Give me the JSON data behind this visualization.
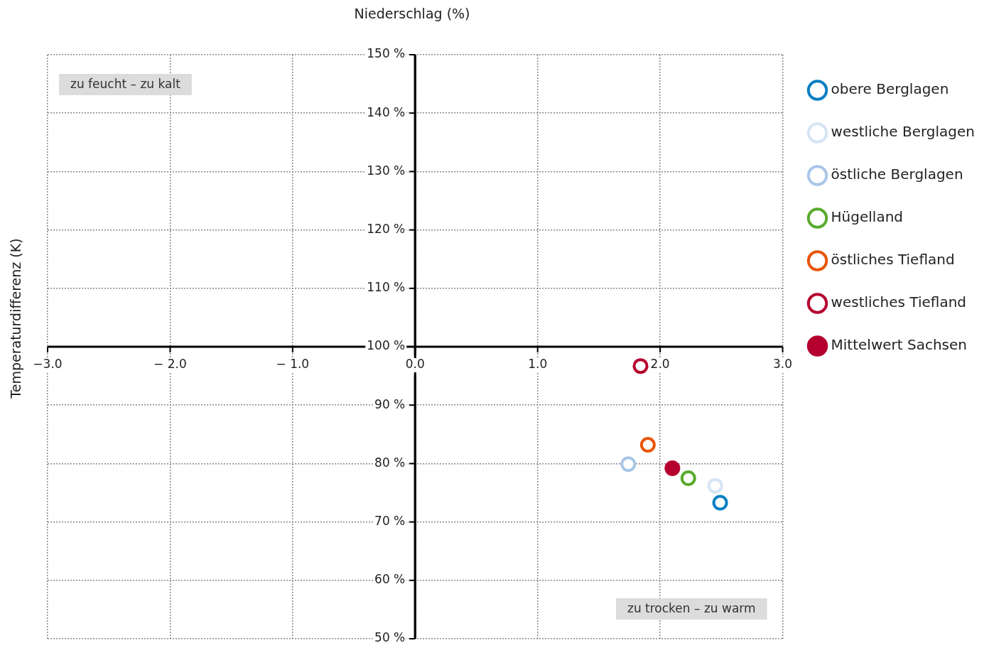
{
  "chart_data": {
    "type": "scatter",
    "ylabel": "Temperaturdifferenz (K)",
    "title": "Niederschlag (%)",
    "xlim": [
      -3,
      3
    ],
    "ylim": [
      50,
      150
    ],
    "xticks": [
      {
        "value": -3,
        "label": "−3.0"
      },
      {
        "value": -2,
        "label": "− 2.0"
      },
      {
        "value": -1,
        "label": "− 1.0"
      },
      {
        "value": 0,
        "label": "0.0"
      },
      {
        "value": 1,
        "label": "1.0"
      },
      {
        "value": 2,
        "label": "2.0"
      },
      {
        "value": 3,
        "label": "3.0"
      }
    ],
    "yticks": [
      {
        "value": 50,
        "label": "50 %"
      },
      {
        "value": 60,
        "label": "60 %"
      },
      {
        "value": 70,
        "label": "70 %"
      },
      {
        "value": 80,
        "label": "80 %"
      },
      {
        "value": 90,
        "label": "90 %"
      },
      {
        "value": 100,
        "label": "100 %"
      },
      {
        "value": 110,
        "label": "110 %"
      },
      {
        "value": 120,
        "label": "120 %"
      },
      {
        "value": 130,
        "label": "130 %"
      },
      {
        "value": 140,
        "label": "140 %"
      },
      {
        "value": 150,
        "label": "150 %"
      }
    ],
    "grid": true,
    "legend": "right",
    "marker": "circle",
    "annotations": [
      "zu feucht – zu kalt",
      "zu trocken – zu warm"
    ],
    "series": [
      {
        "name": "obere Berglagen",
        "color": "#0a7fc4",
        "x": [
          2.49
        ],
        "values": [
          73.3
        ]
      },
      {
        "name": "westliche Berglagen",
        "color": "#d6e4f5",
        "x": [
          2.45
        ],
        "values": [
          76.2
        ]
      },
      {
        "name": "östliche Berglagen",
        "color": "#a9c6e8",
        "x": [
          1.74
        ],
        "values": [
          79.9
        ]
      },
      {
        "name": "Hügelland",
        "color": "#5aaa2e",
        "x": [
          2.23
        ],
        "values": [
          77.5
        ]
      },
      {
        "name": "östliches Tiefland",
        "color": "#e8550a",
        "x": [
          1.9
        ],
        "values": [
          83.2
        ]
      },
      {
        "name": "westliches Tiefland",
        "color": "#b5002f",
        "x": [
          1.84
        ],
        "values": [
          96.7
        ]
      },
      {
        "name": "Mittelwert Sachsen",
        "color": "#b5002f",
        "x": [
          2.1
        ],
        "values": [
          79.2
        ]
      }
    ]
  }
}
